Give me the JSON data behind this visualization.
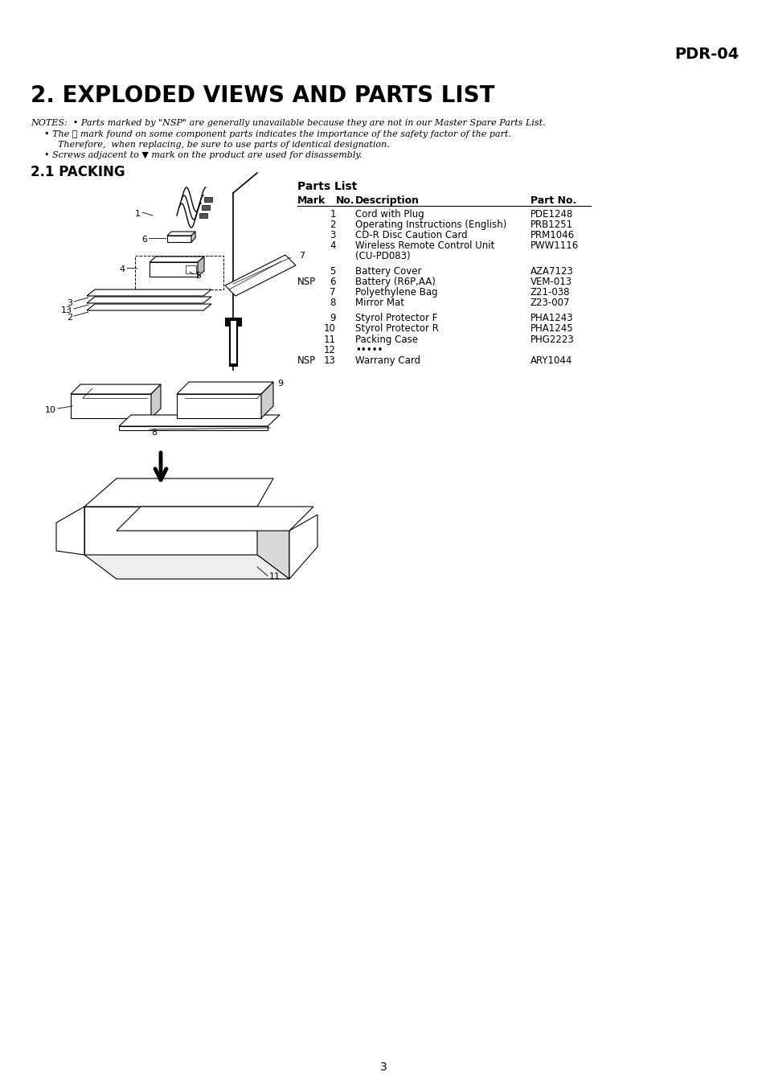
{
  "bg_color": "#ffffff",
  "header_text": "PDR-04",
  "title": "2. EXPLODED VIEWS AND PARTS LIST",
  "notes_line1": "NOTES:  • Parts marked by \"NSP\" are generally unavailable because they are not in our Master Spare Parts List.",
  "notes_line2": "• The ⚠ mark found on some component parts indicates the importance of the safety factor of the part.",
  "notes_line3": "Therefore,  when replacing, be sure to use parts of identical designation.",
  "notes_line4": "• Screws adjacent to ▼ mark on the product are used for disassembly.",
  "section_title": "2.1 PACKING",
  "parts_list_title": "Parts List",
  "table_headers": [
    "Mark",
    "No.",
    "Description",
    "Part No."
  ],
  "table_rows": [
    [
      "",
      "1",
      "Cord with Plug",
      "PDE1248"
    ],
    [
      "",
      "2",
      "Operating Instructions (English)",
      "PRB1251"
    ],
    [
      "",
      "3",
      "CD-R Disc Caution Card",
      "PRM1046"
    ],
    [
      "",
      "4",
      "Wireless Remote Control Unit",
      "PWW1116"
    ],
    [
      "",
      "",
      "(CU-PD083)",
      ""
    ],
    [
      "",
      "5",
      "Battery Cover",
      "AZA7123"
    ],
    [
      "NSP",
      "6",
      "Battery (R6P,AA)",
      "VEM-013"
    ],
    [
      "",
      "7",
      "Polyethylene Bag",
      "Z21-038"
    ],
    [
      "",
      "8",
      "Mirror Mat",
      "Z23-007"
    ],
    [
      "",
      "9",
      "Styrol Protector F",
      "PHA1243"
    ],
    [
      "",
      "10",
      "Styrol Protector R",
      "PHA1245"
    ],
    [
      "",
      "11",
      "Packing Case",
      "PHG2223"
    ],
    [
      "",
      "12",
      "•••••",
      ""
    ],
    [
      "NSP",
      "13",
      "Warrany Card",
      "ARY1044"
    ]
  ],
  "page_number": "3"
}
